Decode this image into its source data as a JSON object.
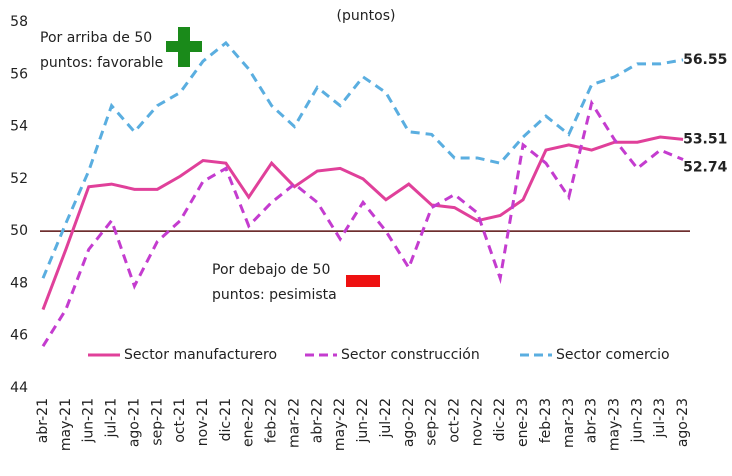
{
  "chart_data": {
    "type": "line",
    "title": "(puntos)",
    "categories": [
      "abr-21",
      "may-21",
      "jun-21",
      "jul-21",
      "ago-21",
      "sep-21",
      "oct-21",
      "nov-21",
      "dic-21",
      "ene-22",
      "feb-22",
      "mar-22",
      "abr-22",
      "may-22",
      "jun-22",
      "jul-22",
      "ago-22",
      "sep-22",
      "oct-22",
      "nov-22",
      "dic-22",
      "ene-23",
      "feb-23",
      "mar-23",
      "abr-23",
      "may-23",
      "jun-23",
      "jul-23",
      "ago-23"
    ],
    "series": [
      {
        "name": "Sector manufacturero",
        "color": "#e0409a",
        "dash": "solid",
        "values": [
          47.0,
          49.3,
          51.7,
          51.8,
          51.6,
          51.6,
          52.1,
          52.7,
          52.6,
          51.3,
          52.6,
          51.7,
          52.3,
          52.4,
          52.0,
          51.2,
          51.8,
          51.0,
          50.9,
          50.4,
          50.6,
          51.2,
          53.1,
          53.3,
          53.1,
          53.4,
          53.4,
          53.6,
          53.51
        ]
      },
      {
        "name": "Sector construcción",
        "color": "#c43ccf",
        "dash": "dashed",
        "values": [
          45.6,
          47.0,
          49.3,
          50.4,
          47.9,
          49.6,
          50.4,
          51.9,
          52.4,
          50.2,
          51.1,
          51.8,
          51.1,
          49.7,
          51.1,
          50.0,
          48.6,
          50.9,
          51.4,
          50.7,
          48.2,
          53.3,
          52.6,
          51.3,
          54.9,
          53.5,
          52.4,
          53.1,
          52.74
        ]
      },
      {
        "name": "Sector comercio",
        "color": "#5aaee0",
        "dash": "dashed",
        "values": [
          48.2,
          50.3,
          52.3,
          54.8,
          53.8,
          54.8,
          55.3,
          56.5,
          57.2,
          56.2,
          54.8,
          54.0,
          55.5,
          54.8,
          55.9,
          55.3,
          53.8,
          53.7,
          52.8,
          52.8,
          52.6,
          53.6,
          54.4,
          53.7,
          55.6,
          55.9,
          56.4,
          56.4,
          56.55
        ]
      }
    ],
    "end_label_colors": [
      "#d0307f",
      "#e070e0",
      "#29a9e0"
    ],
    "ylim": [
      44,
      58
    ],
    "yticks": [
      44,
      46,
      48,
      50,
      52,
      54,
      56,
      58
    ],
    "reference_line": 50,
    "annotations": [
      {
        "lines": [
          "Por arriba de 50",
          "puntos: favorable"
        ]
      },
      {
        "lines": [
          "Por debajo de 50",
          "puntos: pesimista"
        ]
      }
    ],
    "legend": "bottom"
  }
}
